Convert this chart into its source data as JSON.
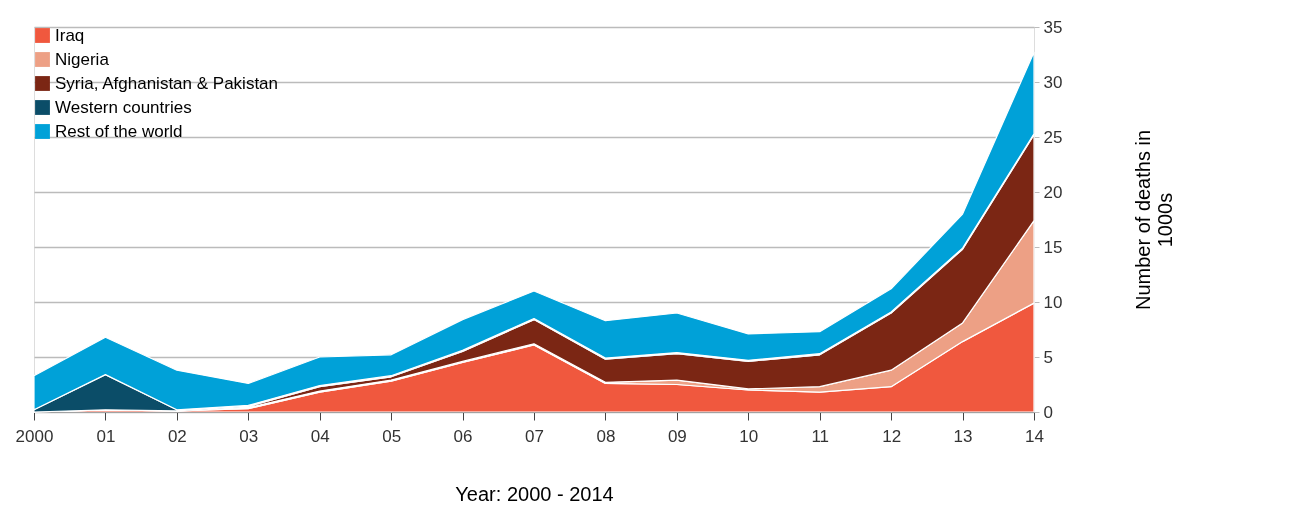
{
  "chart_data": {
    "type": "area",
    "stacked": true,
    "xlabel": "Year: 2000 - 2014",
    "ylabel": "Number of deaths in 1000s",
    "categories": [
      "2000",
      "01",
      "02",
      "03",
      "04",
      "05",
      "06",
      "07",
      "08",
      "09",
      "10",
      "11",
      "12",
      "13",
      "14"
    ],
    "series": [
      {
        "name": "Iraq",
        "color": "#f0583e",
        "values": [
          0,
          0.2,
          0.1,
          0.3,
          1.8,
          2.8,
          4.5,
          6.1,
          2.6,
          2.5,
          2.0,
          1.8,
          2.3,
          6.4,
          9.9
        ]
      },
      {
        "name": "Nigeria",
        "color": "#eda085",
        "values": [
          0,
          0,
          0,
          0.1,
          0.1,
          0.1,
          0.1,
          0.1,
          0.1,
          0.4,
          0.1,
          0.5,
          1.5,
          1.7,
          7.5
        ]
      },
      {
        "name": "Syria, Afghanistan & Pakistan",
        "color": "#7b2614",
        "values": [
          0,
          0,
          0,
          0.1,
          0.4,
          0.3,
          0.9,
          2.2,
          2.1,
          2.4,
          2.5,
          2.9,
          5.2,
          6.7,
          7.8
        ]
      },
      {
        "name": "Western countries",
        "color": "#0b4d68",
        "values": [
          0.2,
          3.2,
          0.1,
          0.1,
          0.1,
          0.1,
          0.1,
          0.1,
          0.1,
          0.1,
          0.1,
          0.1,
          0.1,
          0.1,
          0.1
        ]
      },
      {
        "name": "Rest of the world",
        "color": "#00a1d8",
        "values": [
          3.1,
          3.4,
          3.6,
          2.0,
          2.6,
          1.9,
          2.8,
          2.5,
          3.4,
          3.6,
          2.4,
          2.0,
          2.1,
          3.1,
          7.4
        ]
      }
    ],
    "ylim": [
      0,
      35
    ],
    "yticks": [
      0,
      5,
      10,
      15,
      20,
      25,
      30,
      35
    ],
    "grid": "y",
    "legend": "top left"
  }
}
